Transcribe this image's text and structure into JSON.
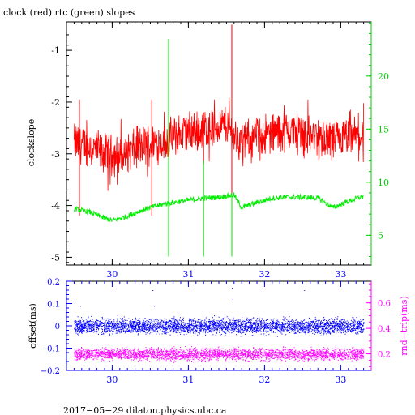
{
  "colors": {
    "clock": "#ff0000",
    "rtc": "#00ee00",
    "offset": "#0000ff",
    "rndtrip": "#ff00ff",
    "axis_top_right": "#00cc00",
    "axis_bottom": "#0000ff",
    "axis_bottom_right": "#ff00ff"
  },
  "chart_data": [
    {
      "type": "line",
      "title": "clock (red) rtc (green) slopes",
      "ylabel": "clockslope",
      "xlabel": "",
      "xlim": [
        29.4,
        33.4
      ],
      "ylim": [
        -5.15,
        -0.45
      ],
      "y2lim": [
        2.2,
        25.1
      ],
      "x_ticks": [
        "30",
        "31",
        "32",
        "33"
      ],
      "y_ticks": [
        "-1",
        "-2",
        "-3",
        "-4",
        "-5"
      ],
      "y2_ticks": [
        "5",
        "10",
        "15",
        "20"
      ],
      "series": [
        {
          "name": "clock",
          "axis": "left",
          "x": [
            29.5,
            29.7,
            29.9,
            30.1,
            30.3,
            30.5,
            30.7,
            30.9,
            31.1,
            31.3,
            31.5,
            31.7,
            31.9,
            32.1,
            32.3,
            32.5,
            32.7,
            32.9,
            33.1,
            33.3
          ],
          "values": [
            -2.8,
            -2.85,
            -3.0,
            -3.05,
            -2.9,
            -2.8,
            -2.75,
            -2.6,
            -2.55,
            -2.5,
            -2.45,
            -2.8,
            -2.65,
            -2.6,
            -2.55,
            -2.6,
            -2.7,
            -2.75,
            -2.7,
            -2.65
          ],
          "spikes": [
            {
              "x": 29.57,
              "values": [
                -1.95,
                -4.2
              ]
            },
            {
              "x": 30.52,
              "values": [
                -1.95,
                -4.2
              ]
            },
            {
              "x": 31.2,
              "values": [
                -2.2,
                -3.2
              ]
            },
            {
              "x": 31.57,
              "values": [
                -0.5,
                -4.95
              ]
            }
          ]
        },
        {
          "name": "rtc",
          "axis": "right",
          "x": [
            29.5,
            29.7,
            29.9,
            30.0,
            30.2,
            30.4,
            30.6,
            30.8,
            31.0,
            31.2,
            31.4,
            31.6,
            31.7,
            31.9,
            32.1,
            32.3,
            32.5,
            32.7,
            32.9,
            33.1,
            33.3
          ],
          "values": [
            7.5,
            7.2,
            6.6,
            6.4,
            6.8,
            7.4,
            7.8,
            8.1,
            8.3,
            8.5,
            8.6,
            8.8,
            7.6,
            8.1,
            8.5,
            8.6,
            8.6,
            8.5,
            7.6,
            8.2,
            8.7
          ],
          "spikes": [
            {
              "x": 30.74,
              "values": [
                3.0,
                23.5
              ]
            },
            {
              "x": 31.2,
              "values": [
                3.0,
                12.0
              ]
            },
            {
              "x": 31.57,
              "values": [
                3.0,
                9.0
              ]
            }
          ]
        }
      ]
    },
    {
      "type": "scatter",
      "title": "",
      "xlabel": "",
      "ylabel": "offset(ms)",
      "y2label": "rnd−trip(ms)",
      "xlim": [
        29.4,
        33.4
      ],
      "ylim": [
        -0.2,
        0.2
      ],
      "y2lim": [
        0.07,
        0.77
      ],
      "x_ticks": [
        "30",
        "31",
        "32",
        "33"
      ],
      "y_ticks": [
        "0.2",
        "0.1",
        "0",
        "−0.1",
        "−0.2"
      ],
      "y2_ticks": [
        "0.6",
        "0.4",
        "0.2"
      ],
      "series": [
        {
          "name": "offset",
          "axis": "left",
          "x_range": [
            29.5,
            33.3
          ],
          "center": 0.0,
          "spread": 0.025
        },
        {
          "name": "rnd-trip",
          "axis": "right",
          "x_range": [
            29.5,
            33.3
          ],
          "center": 0.2,
          "spread": 0.035
        }
      ]
    }
  ],
  "footer": "2017−05−29  dilaton.physics.ubc.ca"
}
